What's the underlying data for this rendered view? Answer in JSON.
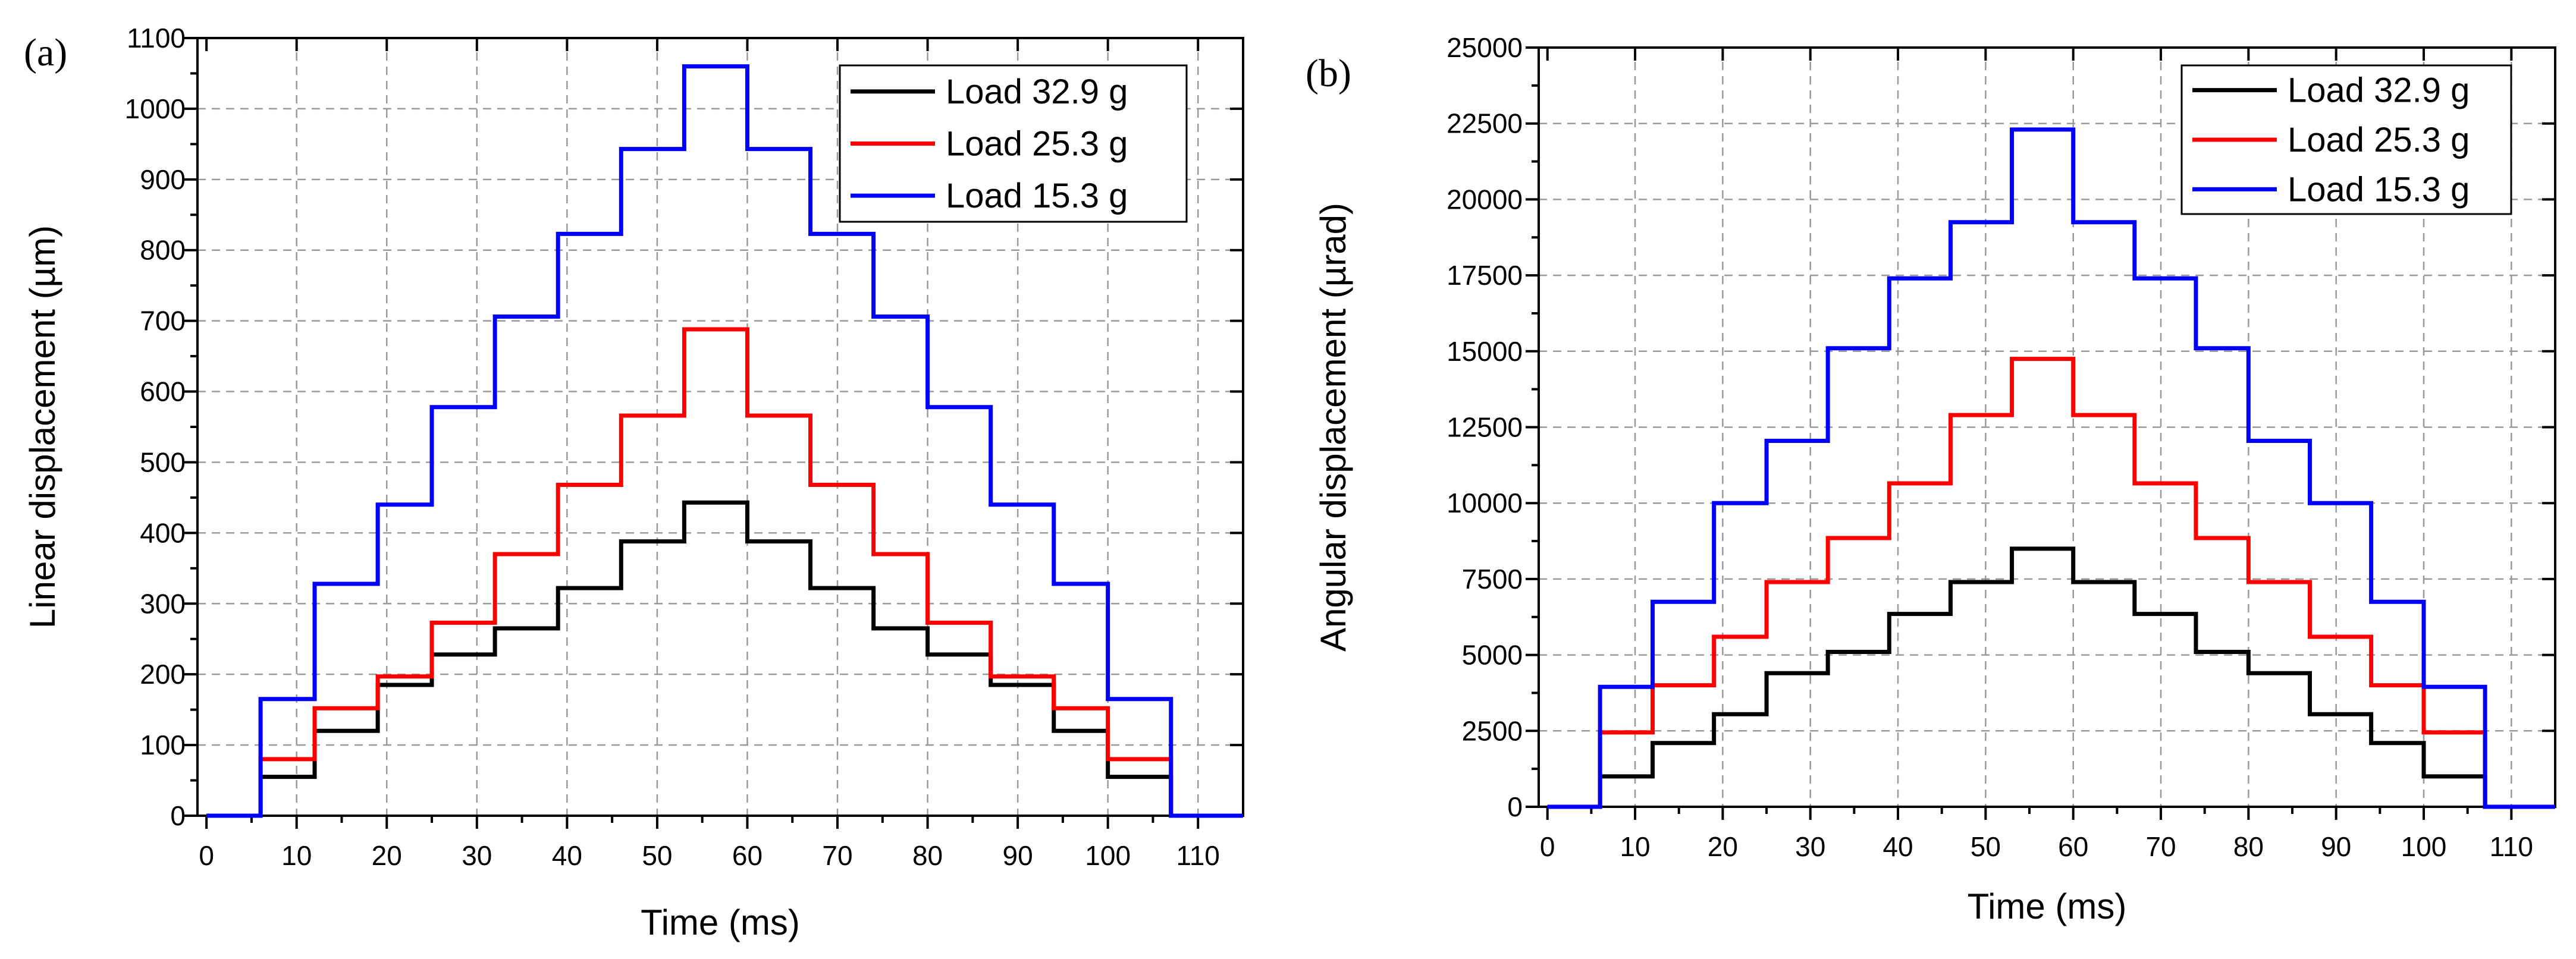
{
  "chart_data": [
    {
      "type": "line",
      "panel_label": "(a)",
      "xlabel": "Time (ms)",
      "ylabel": "Linear displacement (µm)",
      "xlim": [
        -1,
        115
      ],
      "ylim": [
        0,
        1100
      ],
      "xticks": [
        0,
        10,
        20,
        30,
        40,
        50,
        60,
        70,
        80,
        90,
        100,
        110
      ],
      "yticks": [
        0,
        100,
        200,
        300,
        400,
        500,
        600,
        700,
        800,
        900,
        1000,
        1100
      ],
      "grid": true,
      "legend_position": "top-right",
      "step_times": [
        0,
        6,
        12,
        19,
        25,
        32,
        39,
        46,
        53,
        60,
        67,
        74,
        80,
        87,
        94,
        100,
        107,
        115
      ],
      "series": [
        {
          "name": "Load 32.9 g",
          "color": "#000000",
          "values": [
            0,
            55,
            120,
            185,
            228,
            265,
            322,
            388,
            443,
            388,
            322,
            265,
            228,
            185,
            120,
            55,
            0
          ]
        },
        {
          "name": "Load 25.3 g",
          "color": "#ff0000",
          "values": [
            0,
            80,
            152,
            197,
            273,
            370,
            468,
            566,
            688,
            566,
            468,
            370,
            273,
            197,
            152,
            80,
            0
          ]
        },
        {
          "name": "Load 15.3 g",
          "color": "#0000ff",
          "values": [
            0,
            165,
            328,
            440,
            578,
            706,
            823,
            943,
            1060,
            943,
            823,
            706,
            578,
            440,
            328,
            165,
            0
          ]
        }
      ]
    },
    {
      "type": "line",
      "panel_label": "(b)",
      "xlabel": "Time (ms)",
      "ylabel": "Angular displacement (µrad)",
      "xlim": [
        -1,
        115
      ],
      "ylim": [
        0,
        25000
      ],
      "xticks": [
        0,
        10,
        20,
        30,
        40,
        50,
        60,
        70,
        80,
        90,
        100,
        110
      ],
      "yticks": [
        0,
        2500,
        5000,
        7500,
        10000,
        12500,
        15000,
        17500,
        20000,
        22500,
        25000
      ],
      "grid": true,
      "legend_position": "top-right",
      "step_times": [
        0,
        6,
        12,
        19,
        25,
        32,
        39,
        46,
        53,
        60,
        67,
        74,
        80,
        87,
        94,
        100,
        107,
        115
      ],
      "series": [
        {
          "name": "Load 32.9 g",
          "color": "#000000",
          "values": [
            0,
            1000,
            2100,
            3050,
            4400,
            5100,
            6350,
            7400,
            8500,
            7400,
            6350,
            5100,
            4400,
            3050,
            2100,
            1000,
            0
          ]
        },
        {
          "name": "Load 25.3 g",
          "color": "#ff0000",
          "values": [
            0,
            2450,
            4000,
            5600,
            7400,
            8850,
            10650,
            12900,
            14750,
            12900,
            10650,
            8850,
            7400,
            5600,
            4000,
            2450,
            0
          ]
        },
        {
          "name": "Load 15.3 g",
          "color": "#0000ff",
          "values": [
            0,
            3950,
            6750,
            10000,
            12050,
            15100,
            17400,
            19250,
            22300,
            19250,
            17400,
            15100,
            12050,
            10000,
            6750,
            3950,
            0
          ]
        }
      ]
    }
  ]
}
